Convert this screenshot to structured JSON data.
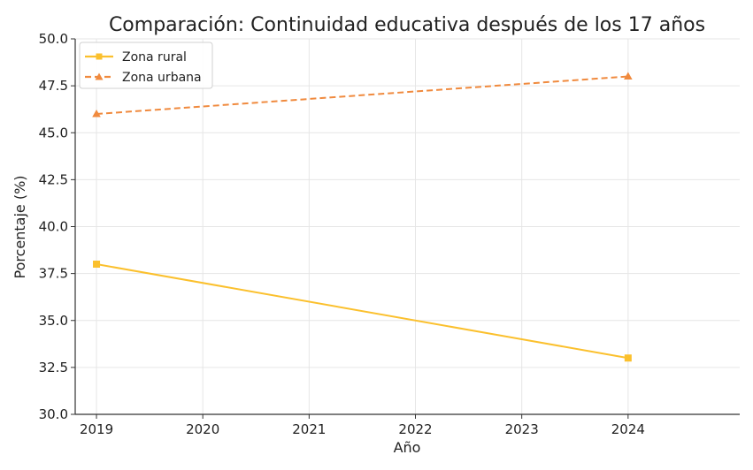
{
  "chart_data": {
    "type": "line",
    "title": "Comparación: Continuidad educativa después de los 17 años",
    "xlabel": "Año",
    "ylabel": "Porcentaje (%)",
    "x": [
      2019,
      2024
    ],
    "x_ticks": [
      "2019",
      "2020",
      "2021",
      "2022",
      "2023",
      "2024"
    ],
    "y_ticks": [
      "30.0",
      "32.5",
      "35.0",
      "37.5",
      "40.0",
      "42.5",
      "45.0",
      "47.5",
      "50.0"
    ],
    "xlim": [
      2018.8,
      2025.05
    ],
    "ylim": [
      30.0,
      50.0
    ],
    "grid": true,
    "legend_position": "top-left",
    "series": [
      {
        "name": "Zona rural",
        "values": [
          38.0,
          33.0
        ],
        "color": "#FBC02D",
        "line_style": "solid",
        "marker": "square"
      },
      {
        "name": "Zona urbana",
        "values": [
          46.0,
          48.0
        ],
        "color": "#F08A3E",
        "line_style": "dashed",
        "marker": "triangle"
      }
    ]
  }
}
